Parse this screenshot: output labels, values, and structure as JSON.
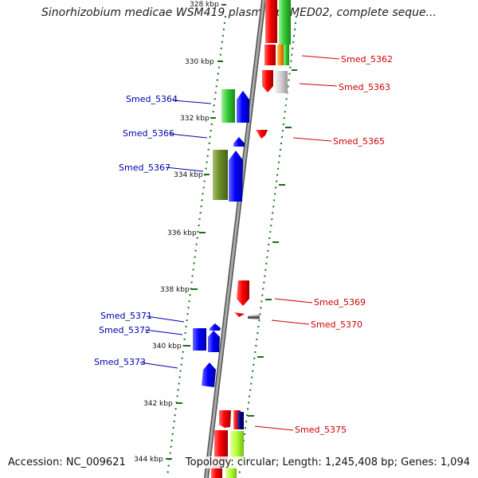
{
  "title": "Sinorhizobium medicae WSM419 plasmid pSMED02, complete seque...",
  "footer": {
    "accession": "Accession: NC_009621",
    "topology": "Topology: circular; Length: 1,245,408 bp; Genes: 1,094"
  },
  "colors": {
    "forward_label": "#0000aa",
    "reverse_label": "#cc0000",
    "tick": "#1a6e1a",
    "backbone": "#888888"
  },
  "ticks": [
    {
      "kbp": 328,
      "label": "328 kbp"
    },
    {
      "kbp": 330,
      "label": "330 kbp"
    },
    {
      "kbp": 332,
      "label": "332 kbp"
    },
    {
      "kbp": 334,
      "label": "334 kbp"
    },
    {
      "kbp": 336,
      "label": "336 kbp"
    },
    {
      "kbp": 338,
      "label": "338 kbp"
    },
    {
      "kbp": 340,
      "label": "340 kbp"
    },
    {
      "kbp": 342,
      "label": "342 kbp"
    },
    {
      "kbp": 344,
      "label": "344 kbp"
    }
  ],
  "gene_labels": [
    {
      "name": "Smed_5362",
      "strand": "reverse"
    },
    {
      "name": "Smed_5363",
      "strand": "reverse"
    },
    {
      "name": "Smed_5364",
      "strand": "forward"
    },
    {
      "name": "Smed_5365",
      "strand": "reverse"
    },
    {
      "name": "Smed_5366",
      "strand": "forward"
    },
    {
      "name": "Smed_5367",
      "strand": "forward"
    },
    {
      "name": "Smed_5369",
      "strand": "reverse"
    },
    {
      "name": "Smed_5370",
      "strand": "reverse"
    },
    {
      "name": "Smed_5371",
      "strand": "forward"
    },
    {
      "name": "Smed_5372",
      "strand": "forward"
    },
    {
      "name": "Smed_5373",
      "strand": "forward"
    },
    {
      "name": "Smed_5375",
      "strand": "reverse"
    }
  ]
}
